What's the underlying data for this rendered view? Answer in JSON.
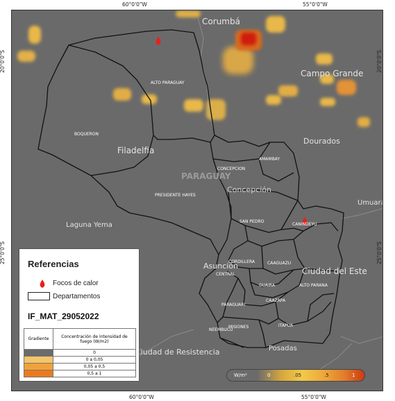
{
  "coords": {
    "top_left": "60°0'0\"W",
    "top_right": "55°0'0\"W",
    "bottom_left": "60°0'0\"W",
    "bottom_right": "55°0'0\"W",
    "left_upper": "20°0'0\"S",
    "left_lower": "25°0'0\"S",
    "right_upper": "20°0'0\"S",
    "right_lower": "25°0'0\"S"
  },
  "country_label": "PARAGUAY",
  "cities": [
    {
      "name": "Corumbá"
    },
    {
      "name": "Campo Grande"
    },
    {
      "name": "Dourados"
    },
    {
      "name": "Filadelfia"
    },
    {
      "name": "Concepción"
    },
    {
      "name": "Laguna Yema"
    },
    {
      "name": "Umuarama"
    },
    {
      "name": "Ciudad del Este"
    },
    {
      "name": "Asunción"
    },
    {
      "name": "Ciudad de Resistencia"
    },
    {
      "name": "Posadas"
    }
  ],
  "departments": [
    "ALTO PARAGUAY",
    "BOQUERON",
    "PRESIDENTE HAYES",
    "CONCEPCION",
    "AMAMBAY",
    "SAN PEDRO",
    "CANINDEYU",
    "CORDILLERA",
    "CENTRAL",
    "CAAGUAZU",
    "GUAIRA",
    "ALTO PARANA",
    "PARAGUARI",
    "CAAZAPA",
    "MISIONES",
    "ITAPUA",
    "NEEMBUCU"
  ],
  "legend": {
    "title": "Referencias",
    "hotspot_label": "Focos de calor",
    "departments_label": "Departamentos",
    "map_id": "IF_MAT_29052022",
    "table": {
      "header_left": "Gradiente",
      "header_right": "Concentración de intensidad de fuego (W/m2)",
      "rows": [
        {
          "label": "0",
          "color": "#6b6b6b"
        },
        {
          "label": "0 a 0,05",
          "color": "#f5c56a"
        },
        {
          "label": "0,05 a 0,5",
          "color": "#f0a23a"
        },
        {
          "label": "0,5 a 1",
          "color": "#ec7a1c"
        }
      ]
    }
  },
  "colorbar": {
    "unit": "W/m²",
    "ticks": [
      "0",
      ".05",
      ".5",
      "1"
    ]
  },
  "colors": {
    "background": "#6a6a6a",
    "hotspot": "#e8211b",
    "border": "#111111"
  }
}
